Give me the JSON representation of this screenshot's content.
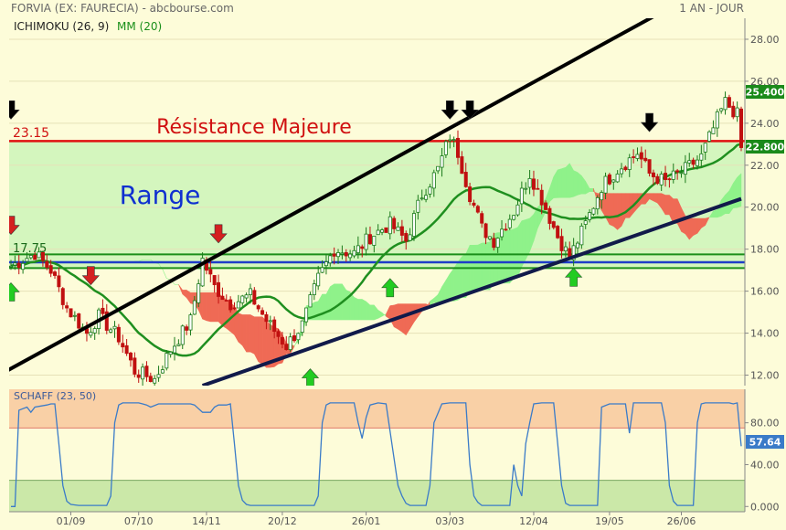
{
  "header": {
    "title": "FORVIA (EX: FAURECIA) - abcbourse.com",
    "period": "1 AN - JOUR",
    "indicator_ichimoku": "ICHIMOKU (26, 9)",
    "indicator_mm": "MM (20)",
    "schaff_title": "SCHAFF (23, 50)"
  },
  "annotations": {
    "resistance_label": "Résistance Majeure",
    "range_label": "Range",
    "resistance_value": "23.15",
    "support_value": "17.75"
  },
  "colors": {
    "background": "#fdfcd9",
    "range_zone": "#ccf5b9",
    "resistance_line": "#e01010",
    "support_line": "#1a8f1a",
    "blue_line": "#1e3cc8",
    "channel_line": "#000000",
    "candle_up": "#1b7a1b",
    "candle_down": "#c01010",
    "ma20": "#1f8f1f",
    "kumo_bull": "#8ff28a",
    "kumo_bear": "#ef6a55",
    "schaff_line": "#3a7bc8",
    "schaff_overbought": "#f9d0a6",
    "schaff_oversold": "#cbe8a8",
    "price_tag_green": "#1a8a1a",
    "arrow_down_black": "#000000",
    "arrow_down_red": "#d42020",
    "arrow_up_green": "#22cc22"
  },
  "chart_data": [
    {
      "type": "candlestick",
      "title": "FORVIA (EX: FAURECIA)",
      "ylim": [
        11.5,
        29
      ],
      "y_ticks": [
        "12.00",
        "14.00",
        "16.00",
        "18.00",
        "20.00",
        "22.00",
        "24.00",
        "26.00",
        "28.00"
      ],
      "x_tick_labels": [
        "01/09",
        "07/10",
        "14/11",
        "20/12",
        "26/01",
        "03/03",
        "12/04",
        "19/05",
        "26/06"
      ],
      "last_price": "22.800",
      "high_tag": "25.400",
      "price_path": [
        [
          0,
          17.2
        ],
        [
          6,
          17.8
        ],
        [
          10,
          17.0
        ],
        [
          14,
          15.2
        ],
        [
          19,
          14.0
        ],
        [
          22,
          14.8
        ],
        [
          27,
          13.8
        ],
        [
          31,
          12.2
        ],
        [
          36,
          11.8
        ],
        [
          40,
          13.2
        ],
        [
          45,
          14.6
        ],
        [
          48,
          17.5
        ],
        [
          51,
          16.2
        ],
        [
          55,
          15.4
        ],
        [
          60,
          15.8
        ],
        [
          64,
          14.6
        ],
        [
          69,
          13.4
        ],
        [
          73,
          14.4
        ],
        [
          77,
          16.6
        ],
        [
          81,
          18.0
        ],
        [
          86,
          17.8
        ],
        [
          90,
          18.6
        ],
        [
          95,
          19.2
        ],
        [
          99,
          18.4
        ],
        [
          103,
          20.6
        ],
        [
          107,
          21.8
        ],
        [
          110,
          23.4
        ],
        [
          112,
          22.6
        ],
        [
          115,
          20.6
        ],
        [
          118,
          19.0
        ],
        [
          121,
          18.4
        ],
        [
          126,
          19.8
        ],
        [
          130,
          21.6
        ],
        [
          133,
          20.4
        ],
        [
          137,
          18.6
        ],
        [
          140,
          17.6
        ],
        [
          144,
          19.2
        ],
        [
          148,
          21.0
        ],
        [
          152,
          21.8
        ],
        [
          157,
          22.6
        ],
        [
          160,
          21.6
        ],
        [
          164,
          21.2
        ],
        [
          169,
          21.8
        ],
        [
          173,
          22.4
        ],
        [
          177,
          24.2
        ],
        [
          179,
          25.0
        ],
        [
          182,
          24.4
        ],
        [
          183,
          22.8
        ]
      ],
      "resistance": 23.15,
      "support": 17.75,
      "support_band_low": 17.1,
      "range": [
        17.1,
        23.15
      ],
      "channel_upper": [
        [
          -3,
          12.0
        ],
        [
          165,
          29.5
        ]
      ],
      "channel_lower": [
        [
          48,
          11.5
        ],
        [
          183,
          20.4
        ]
      ],
      "signals_down_black": [
        [
          110,
          24.2
        ],
        [
          115,
          24.2
        ],
        [
          160,
          23.6
        ],
        [
          0,
          24.2
        ]
      ],
      "signals_down_red": [
        [
          52,
          18.3
        ],
        [
          20,
          16.3
        ],
        [
          0,
          18.7
        ]
      ],
      "signals_up_green": [
        [
          75,
          12.3
        ],
        [
          95,
          16.6
        ],
        [
          141,
          17.1
        ],
        [
          0,
          16.4
        ]
      ]
    },
    {
      "type": "line",
      "title": "SCHAFF (23, 50)",
      "ylim": [
        -5,
        112
      ],
      "y_ticks": [
        "0.000",
        "40.00",
        "80.00"
      ],
      "last_value": "57.64",
      "overbought": 75,
      "oversold": 25,
      "x": [
        0,
        1,
        2,
        4,
        5,
        6,
        9,
        10,
        11,
        12,
        13,
        14,
        15,
        17,
        22,
        23,
        24,
        25,
        26,
        27,
        28,
        29,
        30,
        31,
        32,
        33,
        34,
        35,
        37,
        45,
        46,
        48,
        50,
        51,
        52,
        54,
        55,
        56,
        57,
        58,
        59,
        60,
        61,
        62,
        65,
        75,
        76,
        77,
        78,
        79,
        80,
        82,
        86,
        87,
        88,
        89,
        90,
        92,
        94,
        97,
        98,
        99,
        100,
        101,
        102,
        103,
        104,
        105,
        106,
        108,
        110,
        111,
        112,
        113,
        114,
        115,
        116,
        117,
        118,
        120,
        121,
        123,
        124,
        125,
        126,
        127,
        128,
        129,
        130,
        131,
        133,
        134,
        135,
        136,
        137,
        138,
        139,
        140,
        141,
        142,
        143,
        144,
        145,
        146,
        147,
        148,
        150,
        152,
        153,
        154,
        155,
        156,
        157,
        158,
        159,
        160,
        161,
        162,
        163,
        164,
        165,
        166,
        167,
        168,
        169,
        170,
        171,
        172,
        173,
        174,
        175,
        176,
        177,
        178,
        179,
        180,
        181,
        182,
        183
      ],
      "y": [
        0,
        0,
        92,
        95,
        90,
        95,
        97,
        98,
        98,
        60,
        20,
        5,
        2,
        1,
        1,
        1,
        1,
        10,
        80,
        97,
        99,
        99,
        99,
        99,
        99,
        98,
        97,
        95,
        98,
        98,
        97,
        90,
        90,
        95,
        97,
        97,
        98,
        60,
        20,
        6,
        2,
        1,
        1,
        1,
        1,
        1,
        1,
        10,
        80,
        97,
        99,
        99,
        99,
        80,
        65,
        85,
        97,
        99,
        98,
        20,
        10,
        3,
        1,
        1,
        1,
        1,
        1,
        20,
        80,
        98,
        99,
        99,
        99,
        99,
        99,
        40,
        10,
        4,
        1,
        1,
        1,
        1,
        1,
        1,
        40,
        20,
        10,
        60,
        80,
        98,
        99,
        99,
        99,
        99,
        60,
        20,
        3,
        1,
        1,
        1,
        1,
        1,
        1,
        1,
        1,
        95,
        98,
        98,
        98,
        98,
        70,
        99,
        99,
        99,
        99,
        99,
        99,
        99,
        99,
        80,
        20,
        5,
        1,
        1,
        1,
        1,
        1,
        80,
        98,
        99,
        99,
        99,
        99,
        99,
        99,
        99,
        98,
        99,
        57.64
      ]
    }
  ]
}
